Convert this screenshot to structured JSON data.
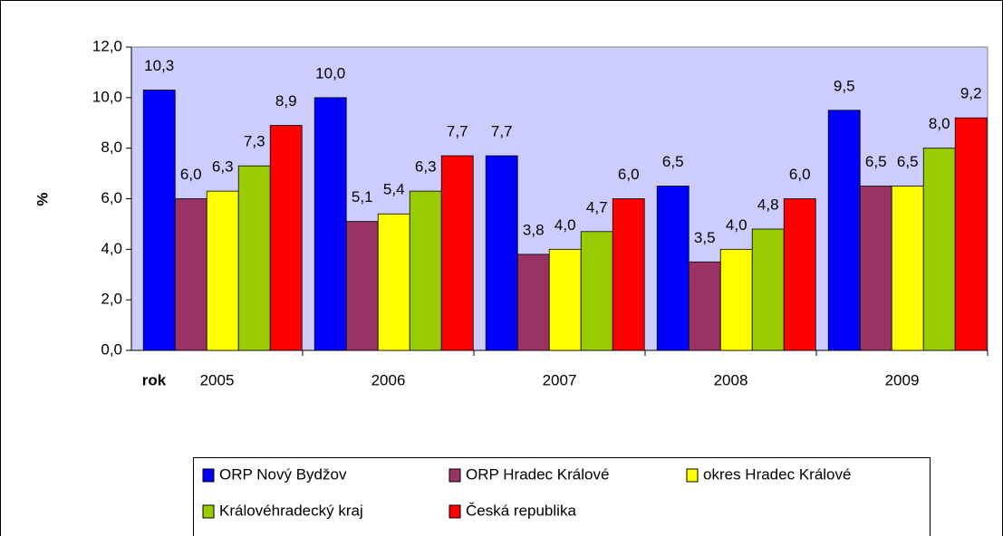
{
  "chart_data": {
    "type": "bar",
    "y_label": "%",
    "x_label": "rok",
    "categories": [
      "2005",
      "2006",
      "2007",
      "2008",
      "2009"
    ],
    "ylim": [
      0,
      12
    ],
    "yticks": [
      {
        "value": 0,
        "label": "0,0"
      },
      {
        "value": 2,
        "label": "2,0"
      },
      {
        "value": 4,
        "label": "4,0"
      },
      {
        "value": 6,
        "label": "6,0"
      },
      {
        "value": 8,
        "label": "8,0"
      },
      {
        "value": 10,
        "label": "10,0"
      },
      {
        "value": 12,
        "label": "12,0"
      }
    ],
    "plot_background": "#ccccff",
    "series": [
      {
        "name": "ORP Nový Bydžov",
        "color": "#0000ff",
        "values": [
          10.3,
          10.0,
          7.7,
          6.5,
          9.5
        ],
        "value_labels": [
          "10,3",
          "10,0",
          "7,7",
          "6,5",
          "9,5"
        ]
      },
      {
        "name": "ORP Hradec Králové",
        "color": "#993366",
        "values": [
          6.0,
          5.1,
          3.8,
          3.5,
          6.5
        ],
        "value_labels": [
          "6,0",
          "5,1",
          "3,8",
          "3,5",
          "6,5"
        ]
      },
      {
        "name": "okres Hradec Králové",
        "color": "#ffff00",
        "values": [
          6.3,
          5.4,
          4.0,
          4.0,
          6.5
        ],
        "value_labels": [
          "6,3",
          "5,4",
          "4,0",
          "4,0",
          "6,5"
        ]
      },
      {
        "name": "Královéhradecký kraj",
        "color": "#99cc00",
        "values": [
          7.3,
          6.3,
          4.7,
          4.8,
          8.0
        ],
        "value_labels": [
          "7,3",
          "6,3",
          "4,7",
          "4,8",
          "8,0"
        ]
      },
      {
        "name": "Česká republika",
        "color": "#ff0000",
        "values": [
          8.9,
          7.7,
          6.0,
          6.0,
          9.2
        ],
        "value_labels": [
          "8,9",
          "7,7",
          "6,0",
          "6,0",
          "9,2"
        ]
      }
    ]
  }
}
